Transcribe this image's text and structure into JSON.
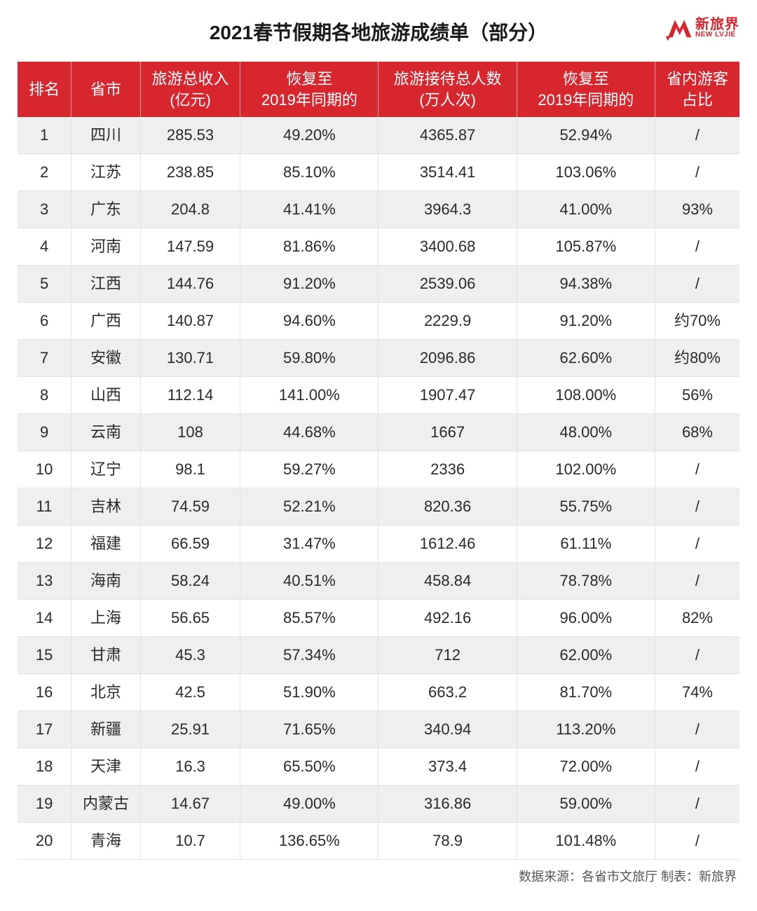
{
  "title": "2021春节假期各地旅游成绩单（部分）",
  "logo": {
    "cn": "新旅界",
    "en": "NEW LVJIE"
  },
  "colors": {
    "header_bg": "#d7262e",
    "header_text": "#ffffff",
    "row_odd_bg": "#efefef",
    "row_even_bg": "#ffffff",
    "border": "#e3e3e3",
    "logo": "#d7262e",
    "text": "#2a2a2a"
  },
  "columns": [
    {
      "key": "rank",
      "label": "排名"
    },
    {
      "key": "province",
      "label": "省市"
    },
    {
      "key": "revenue",
      "label": "旅游总收入\n(亿元)"
    },
    {
      "key": "rev_recovery",
      "label": "恢复至\n2019年同期的"
    },
    {
      "key": "visitors",
      "label": "旅游接待总人数\n(万人次)"
    },
    {
      "key": "vis_recovery",
      "label": "恢复至\n2019年同期的"
    },
    {
      "key": "local_share",
      "label": "省内游客\n占比"
    }
  ],
  "rows": [
    {
      "rank": "1",
      "province": "四川",
      "revenue": "285.53",
      "rev_recovery": "49.20%",
      "visitors": "4365.87",
      "vis_recovery": "52.94%",
      "local_share": "/"
    },
    {
      "rank": "2",
      "province": "江苏",
      "revenue": "238.85",
      "rev_recovery": "85.10%",
      "visitors": "3514.41",
      "vis_recovery": "103.06%",
      "local_share": "/"
    },
    {
      "rank": "3",
      "province": "广东",
      "revenue": "204.8",
      "rev_recovery": "41.41%",
      "visitors": "3964.3",
      "vis_recovery": "41.00%",
      "local_share": "93%"
    },
    {
      "rank": "4",
      "province": "河南",
      "revenue": "147.59",
      "rev_recovery": "81.86%",
      "visitors": "3400.68",
      "vis_recovery": "105.87%",
      "local_share": "/"
    },
    {
      "rank": "5",
      "province": "江西",
      "revenue": "144.76",
      "rev_recovery": "91.20%",
      "visitors": "2539.06",
      "vis_recovery": "94.38%",
      "local_share": "/"
    },
    {
      "rank": "6",
      "province": "广西",
      "revenue": "140.87",
      "rev_recovery": "94.60%",
      "visitors": "2229.9",
      "vis_recovery": "91.20%",
      "local_share": "约70%"
    },
    {
      "rank": "7",
      "province": "安徽",
      "revenue": "130.71",
      "rev_recovery": "59.80%",
      "visitors": "2096.86",
      "vis_recovery": "62.60%",
      "local_share": "约80%"
    },
    {
      "rank": "8",
      "province": "山西",
      "revenue": "112.14",
      "rev_recovery": "141.00%",
      "visitors": "1907.47",
      "vis_recovery": "108.00%",
      "local_share": "56%"
    },
    {
      "rank": "9",
      "province": "云南",
      "revenue": "108",
      "rev_recovery": "44.68%",
      "visitors": "1667",
      "vis_recovery": "48.00%",
      "local_share": "68%"
    },
    {
      "rank": "10",
      "province": "辽宁",
      "revenue": "98.1",
      "rev_recovery": "59.27%",
      "visitors": "2336",
      "vis_recovery": "102.00%",
      "local_share": "/"
    },
    {
      "rank": "11",
      "province": "吉林",
      "revenue": "74.59",
      "rev_recovery": "52.21%",
      "visitors": "820.36",
      "vis_recovery": "55.75%",
      "local_share": "/"
    },
    {
      "rank": "12",
      "province": "福建",
      "revenue": "66.59",
      "rev_recovery": "31.47%",
      "visitors": "1612.46",
      "vis_recovery": "61.11%",
      "local_share": "/"
    },
    {
      "rank": "13",
      "province": "海南",
      "revenue": "58.24",
      "rev_recovery": "40.51%",
      "visitors": "458.84",
      "vis_recovery": "78.78%",
      "local_share": "/"
    },
    {
      "rank": "14",
      "province": "上海",
      "revenue": "56.65",
      "rev_recovery": "85.57%",
      "visitors": "492.16",
      "vis_recovery": "96.00%",
      "local_share": "82%"
    },
    {
      "rank": "15",
      "province": "甘肃",
      "revenue": "45.3",
      "rev_recovery": "57.34%",
      "visitors": "712",
      "vis_recovery": "62.00%",
      "local_share": "/"
    },
    {
      "rank": "16",
      "province": "北京",
      "revenue": "42.5",
      "rev_recovery": "51.90%",
      "visitors": "663.2",
      "vis_recovery": "81.70%",
      "local_share": "74%"
    },
    {
      "rank": "17",
      "province": "新疆",
      "revenue": "25.91",
      "rev_recovery": "71.65%",
      "visitors": "340.94",
      "vis_recovery": "113.20%",
      "local_share": "/"
    },
    {
      "rank": "18",
      "province": "天津",
      "revenue": "16.3",
      "rev_recovery": "65.50%",
      "visitors": "373.4",
      "vis_recovery": "72.00%",
      "local_share": "/"
    },
    {
      "rank": "19",
      "province": "内蒙古",
      "revenue": "14.67",
      "rev_recovery": "49.00%",
      "visitors": "316.86",
      "vis_recovery": "59.00%",
      "local_share": "/"
    },
    {
      "rank": "20",
      "province": "青海",
      "revenue": "10.7",
      "rev_recovery": "136.65%",
      "visitors": "78.9",
      "vis_recovery": "101.48%",
      "local_share": "/"
    }
  ],
  "footer": "数据来源：各省市文旅厅 制表：新旅界"
}
